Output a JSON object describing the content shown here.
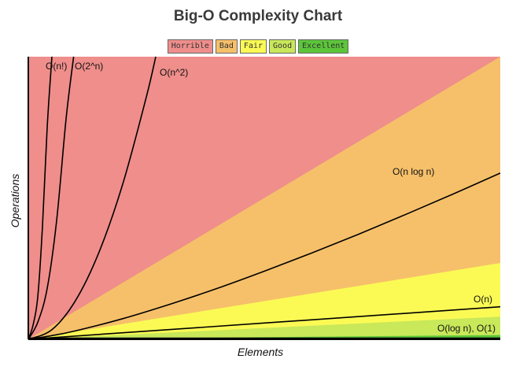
{
  "chart_data": {
    "type": "area",
    "title": "Big-O Complexity Chart",
    "xlabel": "Elements",
    "ylabel": "Operations",
    "xlim": [
      0,
      100
    ],
    "ylim": [
      0,
      100
    ],
    "grid": false,
    "legend_position": "top",
    "legend": [
      {
        "name": "Horrible",
        "color": "#ef8e8b"
      },
      {
        "name": "Bad",
        "color": "#f6c06a"
      },
      {
        "name": "Fair",
        "color": "#fbfa55"
      },
      {
        "name": "Good",
        "color": "#c9e85a"
      },
      {
        "name": "Excellent",
        "color": "#5cc53a"
      }
    ],
    "regions": [
      {
        "name": "Horrible",
        "color": "#ef8e8b",
        "boundary": [
          [
            0,
            100
          ],
          [
            100,
            100
          ]
        ]
      },
      {
        "name": "Bad",
        "color": "#f6c06a",
        "boundary": [
          [
            0,
            0
          ],
          [
            100,
            100
          ]
        ]
      },
      {
        "name": "Fair",
        "color": "#fbfa55",
        "boundary": [
          [
            0,
            0
          ],
          [
            100,
            27
          ]
        ]
      },
      {
        "name": "Good",
        "color": "#c9e85a",
        "boundary": [
          [
            0,
            0
          ],
          [
            100,
            8
          ]
        ]
      },
      {
        "name": "Excellent",
        "color": "#5cc53a",
        "boundary": [
          [
            0,
            0
          ],
          [
            100,
            1.5
          ]
        ]
      }
    ],
    "series": [
      {
        "name": "O(n!)",
        "x": [
          0,
          1,
          2,
          3,
          4,
          5
        ],
        "y": [
          0,
          5,
          15,
          40,
          75,
          100
        ]
      },
      {
        "name": "O(2^n)",
        "x": [
          0,
          2,
          4,
          6,
          8,
          9.6
        ],
        "y": [
          0,
          6,
          18,
          42,
          78,
          100
        ]
      },
      {
        "name": "O(n^2)",
        "x": [
          0,
          5,
          10,
          15,
          20,
          25,
          27
        ],
        "y": [
          0,
          3.4,
          13.7,
          30.9,
          54.9,
          85.7,
          100
        ]
      },
      {
        "name": "O(n log n)",
        "x": [
          0,
          5,
          10,
          20,
          30,
          40,
          50,
          60,
          70,
          80,
          90,
          100
        ],
        "y": [
          0,
          1.3,
          3,
          7.3,
          12.4,
          18,
          24.1,
          30.5,
          37.2,
          44.2,
          51.4,
          58.8
        ]
      },
      {
        "name": "O(n)",
        "x": [
          0,
          100
        ],
        "y": [
          0,
          11.5
        ]
      },
      {
        "name": "O(log n), O(1)",
        "x": [
          0,
          100
        ],
        "y": [
          0.4,
          0.4
        ]
      }
    ]
  }
}
